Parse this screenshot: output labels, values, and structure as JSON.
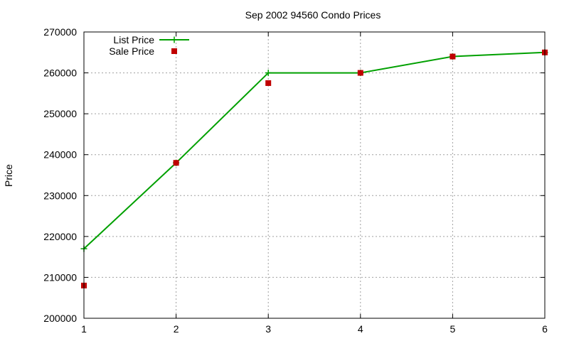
{
  "chart_data": {
    "type": "line",
    "title": "Sep 2002 94560 Condo Prices",
    "xlabel": "",
    "ylabel": "Price",
    "x": [
      1,
      2,
      3,
      4,
      5,
      6
    ],
    "xlim": [
      1,
      6
    ],
    "ylim": [
      200000,
      270000
    ],
    "xticks": [
      "1",
      "2",
      "3",
      "4",
      "5",
      "6"
    ],
    "yticks": [
      "200000",
      "210000",
      "220000",
      "230000",
      "240000",
      "250000",
      "260000",
      "270000"
    ],
    "grid": true,
    "legend_position": "top-left",
    "series": [
      {
        "name": "List Price",
        "mark": "line+plus",
        "color": "#00a000",
        "values": [
          217000,
          238000,
          260000,
          260000,
          264000,
          265000
        ]
      },
      {
        "name": "Sale Price",
        "mark": "square",
        "color": "#c00000",
        "values": [
          208000,
          238000,
          257500,
          260000,
          264000,
          265000
        ]
      }
    ]
  }
}
